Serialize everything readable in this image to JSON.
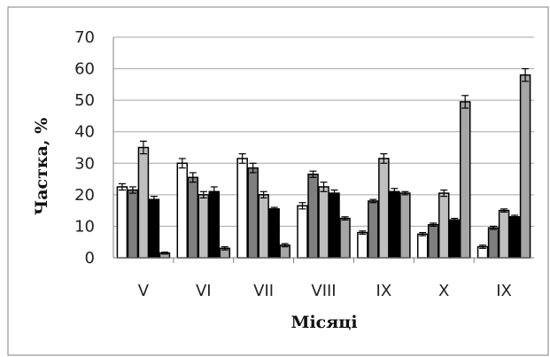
{
  "chart_data": {
    "type": "bar",
    "title": "",
    "xlabel": "Місяці",
    "ylabel": "Частка, %",
    "ylim": [
      0,
      70
    ],
    "yticks": [
      0,
      10,
      20,
      30,
      40,
      50,
      60,
      70
    ],
    "grid": true,
    "legend": "none",
    "categories": [
      "V",
      "VI",
      "VII",
      "VIII",
      "IX",
      "X",
      "IX"
    ],
    "series": [
      {
        "fill": "#ffffff",
        "values": [
          22.5,
          30,
          31.5,
          16.5,
          8,
          7.5,
          3.5
        ],
        "errors": [
          1,
          1.5,
          1.5,
          1,
          0.5,
          0.5,
          0.5
        ]
      },
      {
        "fill": "#7f7f7f",
        "values": [
          21.5,
          25.5,
          28.5,
          26.5,
          18,
          10.5,
          9.5
        ],
        "errors": [
          1,
          1.5,
          1.5,
          1,
          0.5,
          0.5,
          0.5
        ]
      },
      {
        "fill": "#bfbfbf",
        "values": [
          35,
          20,
          20,
          22.5,
          31.5,
          20.5,
          15
        ],
        "errors": [
          2,
          1,
          1,
          1.5,
          1.5,
          1,
          0.5
        ]
      },
      {
        "fill": "#000000",
        "values": [
          18.5,
          21,
          15.5,
          20.5,
          21,
          12,
          13
        ],
        "errors": [
          1,
          1.5,
          0.5,
          1,
          1,
          0.5,
          0.5
        ]
      },
      {
        "fill": "#a6a6a6",
        "values": [
          1.5,
          3,
          4,
          12.5,
          20.5,
          49.5,
          58
        ],
        "errors": [
          0.3,
          0.5,
          0.5,
          0.5,
          0.5,
          2,
          2
        ]
      }
    ]
  }
}
